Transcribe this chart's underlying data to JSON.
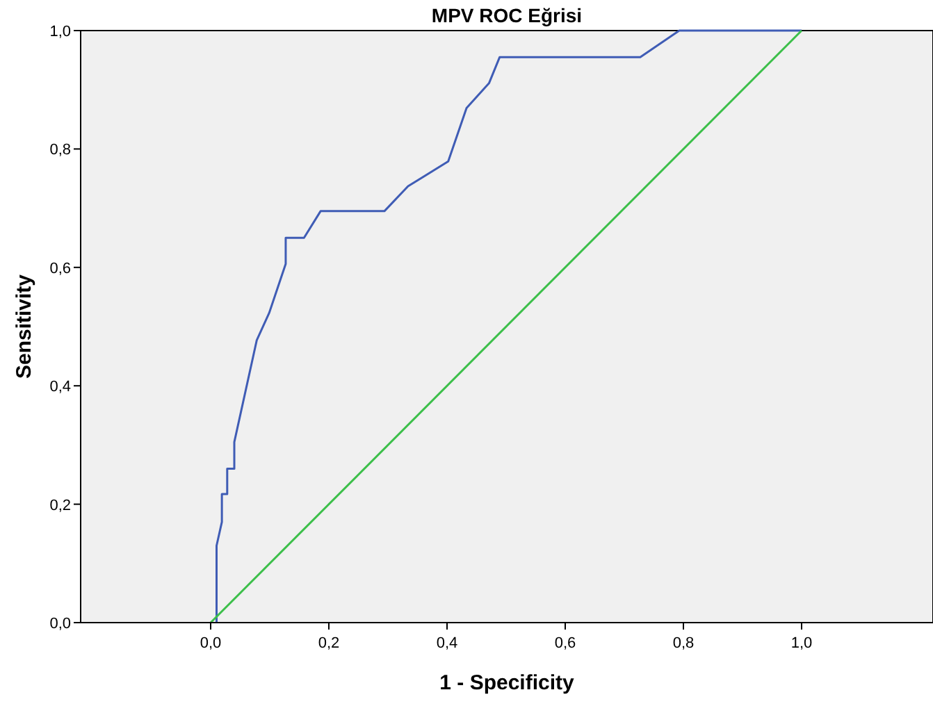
{
  "chart_data": {
    "type": "line",
    "title": "MPV ROC Eğrisi",
    "xlabel": "1 - Specificity",
    "ylabel": "Sensitivity",
    "series": [
      {
        "color": "#3f5cb5",
        "x": [
          0.01,
          0.01,
          0.019,
          0.019,
          0.028,
          0.028,
          0.04,
          0.04,
          0.078,
          0.099,
          0.127,
          0.127,
          0.158,
          0.186,
          0.294,
          0.334,
          0.402,
          0.433,
          0.471,
          0.489,
          0.727,
          0.793,
          1.0
        ],
        "values": [
          0,
          0.13,
          0.17,
          0.217,
          0.217,
          0.26,
          0.26,
          0.305,
          0.477,
          0.523,
          0.606,
          0.65,
          0.65,
          0.695,
          0.695,
          0.737,
          0.779,
          0.869,
          0.911,
          0.955,
          0.955,
          1,
          1
        ]
      },
      {
        "color": "#3cbf4a",
        "x": [
          0,
          1
        ],
        "values": [
          0,
          1
        ]
      }
    ],
    "xlim": [
      -0.22,
      1.22
    ],
    "ylim": [
      0,
      1
    ],
    "xticks": [
      {
        "value": 0,
        "label": "0,0"
      },
      {
        "value": 0.2,
        "label": "0,2"
      },
      {
        "value": 0.4,
        "label": "0,4"
      },
      {
        "value": 0.6,
        "label": "0,6"
      },
      {
        "value": 0.8,
        "label": "0,8"
      },
      {
        "value": 1,
        "label": "1,0"
      }
    ],
    "yticks": [
      {
        "value": 0,
        "label": "0,0"
      },
      {
        "value": 0.2,
        "label": "0,2"
      },
      {
        "value": 0.4,
        "label": "0,4"
      },
      {
        "value": 0.6,
        "label": "0,6"
      },
      {
        "value": 0.8,
        "label": "0,8"
      },
      {
        "value": 1,
        "label": "1,0"
      }
    ],
    "grid": false,
    "marker": "none",
    "line_style": "solid"
  }
}
